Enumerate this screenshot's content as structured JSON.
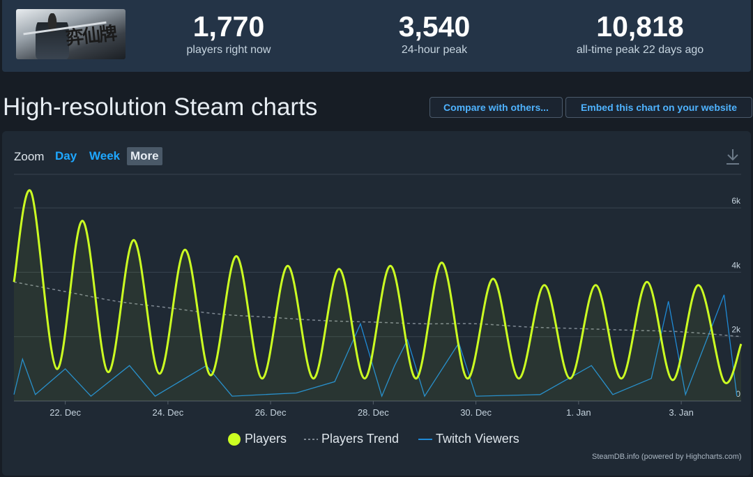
{
  "header": {
    "thumbnail_text": "弈仙牌",
    "stats": [
      {
        "value": "1,770",
        "label": "players right now"
      },
      {
        "value": "3,540",
        "label": "24-hour peak"
      },
      {
        "value": "10,818",
        "label": "all-time peak 22 days ago"
      }
    ]
  },
  "page_title": "High-resolution Steam charts",
  "buttons": {
    "compare": "Compare with others...",
    "embed": "Embed this chart on your website"
  },
  "zoom": {
    "label": "Zoom",
    "options": [
      "Day",
      "Week",
      "More"
    ],
    "active": "More"
  },
  "legend": {
    "players": "Players",
    "trend": "Players Trend",
    "twitch": "Twitch Viewers"
  },
  "credit": "SteamDB.info (powered by Highcharts.com)",
  "colors": {
    "players": "#ccff22",
    "trend": "#808a94",
    "twitch": "#1f8ad6",
    "accent": "#1ea7ff"
  },
  "chart_data": {
    "type": "line",
    "x_range": [
      "21 Dec",
      "4 Jan"
    ],
    "x_ticks": [
      "22. Dec",
      "24. Dec",
      "26. Dec",
      "28. Dec",
      "30. Dec",
      "1. Jan",
      "3. Jan"
    ],
    "y_ticks": [
      "0",
      "2k",
      "4k",
      "6k"
    ],
    "ylim": [
      0,
      7000
    ],
    "series": [
      {
        "name": "Players",
        "points": [
          [
            "21 Dec 00:00",
            3700
          ],
          [
            "21 Dec 08:00",
            6500
          ],
          [
            "21 Dec 20:00",
            1000
          ],
          [
            "22 Dec 08:00",
            5600
          ],
          [
            "22 Dec 20:00",
            900
          ],
          [
            "23 Dec 08:00",
            5000
          ],
          [
            "23 Dec 20:00",
            850
          ],
          [
            "24 Dec 08:00",
            4700
          ],
          [
            "24 Dec 20:00",
            800
          ],
          [
            "25 Dec 08:00",
            4500
          ],
          [
            "25 Dec 20:00",
            700
          ],
          [
            "26 Dec 08:00",
            4200
          ],
          [
            "26 Dec 20:00",
            700
          ],
          [
            "27 Dec 08:00",
            4100
          ],
          [
            "27 Dec 20:00",
            700
          ],
          [
            "28 Dec 08:00",
            4200
          ],
          [
            "28 Dec 20:00",
            700
          ],
          [
            "29 Dec 08:00",
            4300
          ],
          [
            "29 Dec 20:00",
            700
          ],
          [
            "30 Dec 08:00",
            3800
          ],
          [
            "30 Dec 20:00",
            700
          ],
          [
            "31 Dec 08:00",
            3600
          ],
          [
            "31 Dec 20:00",
            700
          ],
          [
            "1 Jan 08:00",
            3600
          ],
          [
            "1 Jan 20:00",
            700
          ],
          [
            "2 Jan 08:00",
            3700
          ],
          [
            "2 Jan 20:00",
            650
          ],
          [
            "3 Jan 08:00",
            3600
          ],
          [
            "3 Jan 20:00",
            600
          ],
          [
            "4 Jan 04:00",
            1770
          ]
        ]
      },
      {
        "name": "Players Trend",
        "points": [
          [
            "21 Dec 00:00",
            3700
          ],
          [
            "22 Dec 00:00",
            3400
          ],
          [
            "23 Dec 00:00",
            3100
          ],
          [
            "24 Dec 00:00",
            2900
          ],
          [
            "25 Dec 00:00",
            2700
          ],
          [
            "26 Dec 00:00",
            2600
          ],
          [
            "27 Dec 00:00",
            2500
          ],
          [
            "28 Dec 00:00",
            2450
          ],
          [
            "29 Dec 00:00",
            2400
          ],
          [
            "30 Dec 00:00",
            2400
          ],
          [
            "31 Dec 00:00",
            2300
          ],
          [
            "1 Jan 00:00",
            2250
          ],
          [
            "2 Jan 00:00",
            2200
          ],
          [
            "3 Jan 00:00",
            2150
          ],
          [
            "4 Jan 04:00",
            2000
          ]
        ]
      },
      {
        "name": "Twitch Viewers",
        "points": [
          [
            "21 Dec 00:00",
            200
          ],
          [
            "21 Dec 04:00",
            1300
          ],
          [
            "21 Dec 10:00",
            200
          ],
          [
            "22 Dec 00:00",
            1000
          ],
          [
            "22 Dec 12:00",
            150
          ],
          [
            "23 Dec 06:00",
            1100
          ],
          [
            "23 Dec 18:00",
            150
          ],
          [
            "24 Dec 18:00",
            1100
          ],
          [
            "25 Dec 06:00",
            150
          ],
          [
            "26 Dec 12:00",
            250
          ],
          [
            "27 Dec 06:00",
            600
          ],
          [
            "27 Dec 18:00",
            2400
          ],
          [
            "28 Dec 04:00",
            150
          ],
          [
            "28 Dec 10:00",
            1100
          ],
          [
            "28 Dec 16:00",
            1900
          ],
          [
            "29 Dec 00:00",
            150
          ],
          [
            "29 Dec 16:00",
            1800
          ],
          [
            "30 Dec 00:00",
            150
          ],
          [
            "31 Dec 06:00",
            200
          ],
          [
            "1 Jan 06:00",
            1100
          ],
          [
            "1 Jan 16:00",
            200
          ],
          [
            "2 Jan 10:00",
            700
          ],
          [
            "2 Jan 18:00",
            3100
          ],
          [
            "3 Jan 02:00",
            200
          ],
          [
            "3 Jan 20:00",
            3300
          ],
          [
            "4 Jan 02:00",
            150
          ]
        ]
      }
    ],
    "grid": true,
    "legend_position": "bottom-center"
  }
}
